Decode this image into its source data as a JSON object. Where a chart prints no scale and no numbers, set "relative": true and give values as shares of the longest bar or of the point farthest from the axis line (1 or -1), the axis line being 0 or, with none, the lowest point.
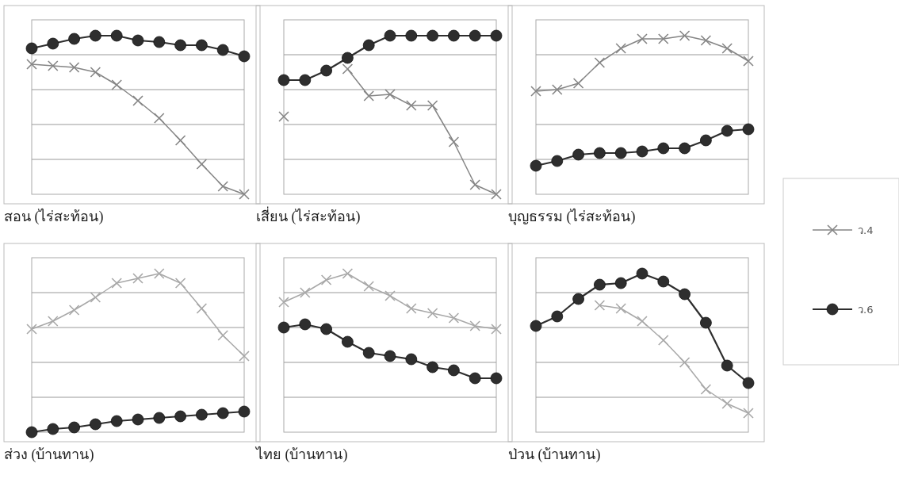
{
  "chart_data": [
    {
      "type": "line",
      "title": "สอน (ไร่สะท้อน)",
      "relative": true,
      "grid": true,
      "legend": "right",
      "line_style": "solid",
      "categories": [
        null,
        null,
        null,
        null,
        null,
        null,
        null,
        null,
        null,
        null,
        null
      ],
      "series": [
        {
          "name": "ว.4",
          "color": "#858585",
          "marker": "cross",
          "values": [
            0.82,
            0.81,
            0.8,
            0.77,
            0.69,
            0.59,
            0.48,
            0.34,
            0.19,
            0.05,
            0
          ]
        },
        {
          "name": "ว.6",
          "color": "#2e2e2e",
          "marker": "circle",
          "values": [
            0.92,
            0.95,
            0.98,
            1,
            1,
            0.97,
            0.96,
            0.94,
            0.94,
            0.91,
            0.87
          ]
        }
      ]
    },
    {
      "type": "line",
      "title": "เสี่ยน (ไร่สะท้อน)",
      "relative": true,
      "grid": true,
      "line_style": "solid",
      "categories": [
        null,
        null,
        null,
        null,
        null,
        null,
        null,
        null,
        null,
        null,
        null
      ],
      "series": [
        {
          "color": "#858585",
          "marker": "cross",
          "values": [
            0.49,
            null,
            null,
            0.79,
            0.62,
            0.63,
            0.56,
            0.56,
            0.33,
            0.06,
            0
          ]
        },
        {
          "color": "#2e2e2e",
          "marker": "circle",
          "values": [
            0.72,
            0.72,
            0.78,
            0.86,
            0.94,
            1,
            1,
            1,
            1,
            1,
            1
          ]
        }
      ]
    },
    {
      "type": "line",
      "title": "บุญธรรม (ไร่สะท้อน)",
      "relative": true,
      "grid": true,
      "line_style": "solid",
      "categories": [
        null,
        null,
        null,
        null,
        null,
        null,
        null,
        null,
        null,
        null,
        null
      ],
      "series": [
        {
          "color": "#858585",
          "marker": "cross",
          "values": [
            0.65,
            0.66,
            0.7,
            0.83,
            0.92,
            0.98,
            0.98,
            1,
            0.97,
            0.92,
            0.84
          ]
        },
        {
          "color": "#2e2e2e",
          "marker": "circle",
          "values": [
            0.18,
            0.21,
            0.25,
            0.26,
            0.26,
            0.27,
            0.29,
            0.29,
            0.34,
            0.4,
            0.41
          ]
        }
      ]
    },
    {
      "type": "line",
      "title": "ส่วง  (บ้านทาน)",
      "relative": true,
      "grid": true,
      "line_style": "solid",
      "categories": [
        null,
        null,
        null,
        null,
        null,
        null,
        null,
        null,
        null,
        null,
        null
      ],
      "series": [
        {
          "color": "#a8a8a8",
          "marker": "cross",
          "values": [
            0.65,
            0.7,
            0.77,
            0.85,
            0.94,
            0.97,
            1,
            0.94,
            0.78,
            0.61,
            0.48
          ]
        },
        {
          "color": "#2e2e2e",
          "marker": "circle",
          "values": [
            0,
            0.02,
            0.03,
            0.05,
            0.07,
            0.08,
            0.09,
            0.1,
            0.11,
            0.12,
            0.13
          ]
        }
      ]
    },
    {
      "type": "line",
      "title": "ไทย  (บ้านทาน)",
      "relative": true,
      "grid": true,
      "line_style": "solid",
      "categories": [
        null,
        null,
        null,
        null,
        null,
        null,
        null,
        null,
        null,
        null,
        null
      ],
      "series": [
        {
          "color": "#a8a8a8",
          "marker": "cross",
          "values": [
            0.82,
            0.88,
            0.96,
            1,
            0.92,
            0.86,
            0.78,
            0.75,
            0.72,
            0.67,
            0.65
          ]
        },
        {
          "color": "#2e2e2e",
          "marker": "circle",
          "values": [
            0.66,
            0.68,
            0.65,
            0.57,
            0.5,
            0.48,
            0.46,
            0.41,
            0.39,
            0.34,
            0.34
          ]
        }
      ]
    },
    {
      "type": "line",
      "title": "ป่วน (บ้านทาน)",
      "relative": true,
      "grid": true,
      "line_style": "solid",
      "categories": [
        null,
        null,
        null,
        null,
        null,
        null,
        null,
        null,
        null,
        null,
        null
      ],
      "series": [
        {
          "color": "#a8a8a8",
          "marker": "cross",
          "values": [
            null,
            null,
            null,
            0.8,
            0.78,
            0.7,
            0.58,
            0.44,
            0.27,
            0.18,
            0.12
          ]
        },
        {
          "color": "#2e2e2e",
          "marker": "circle",
          "values": [
            0.67,
            0.73,
            0.84,
            0.93,
            0.94,
            1,
            0.95,
            0.87,
            0.69,
            0.42,
            0.31
          ]
        }
      ]
    }
  ]
}
